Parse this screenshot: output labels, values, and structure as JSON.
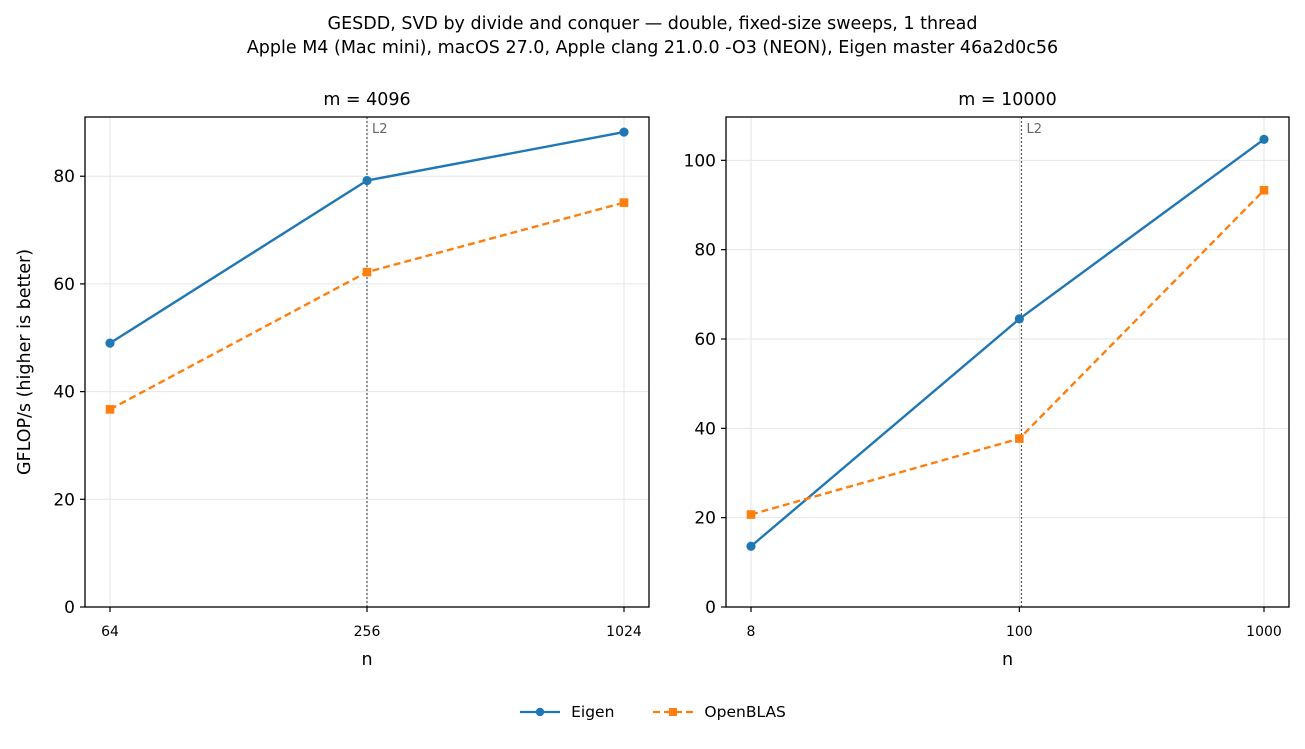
{
  "title_line1": "GESDD, SVD by divide and conquer — double, fixed-size sweeps, 1 thread",
  "title_line2": "Apple M4 (Mac mini), macOS 27.0, Apple clang 21.0.0 -O3 (NEON), Eigen master 46a2d0c56",
  "legend": [
    {
      "name": "Eigen",
      "color": "#1f77b4",
      "marker": "circle",
      "line": "solid"
    },
    {
      "name": "OpenBLAS",
      "color": "#ff7f0e",
      "marker": "square",
      "line": "dashed"
    }
  ],
  "chart_data": [
    {
      "type": "line",
      "title": "m = 4096",
      "xlabel": "n",
      "ylabel": "GFLOP/s (higher is better)",
      "x_scale": "log2",
      "x": [
        64,
        256,
        1024
      ],
      "x_tick_labels": [
        "64",
        "256",
        "1024"
      ],
      "ylim": [
        0,
        91
      ],
      "y_ticks": [
        0,
        20,
        40,
        60,
        80
      ],
      "grid": true,
      "vline": {
        "x": 256,
        "label": "L2"
      },
      "series": [
        {
          "name": "Eigen",
          "values": [
            49.0,
            79.2,
            88.2
          ]
        },
        {
          "name": "OpenBLAS",
          "values": [
            36.7,
            62.2,
            75.1
          ]
        }
      ]
    },
    {
      "type": "line",
      "title": "m = 10000",
      "xlabel": "n",
      "ylabel": "",
      "x_scale": "log10",
      "x": [
        8,
        100,
        1000
      ],
      "x_tick_labels": [
        "8",
        "100",
        "1000"
      ],
      "ylim": [
        0,
        109.7
      ],
      "y_ticks": [
        0,
        20,
        40,
        60,
        80,
        100
      ],
      "grid": true,
      "vline": {
        "x": 102,
        "label": "L2"
      },
      "series": [
        {
          "name": "Eigen",
          "values": [
            13.6,
            64.5,
            104.7
          ]
        },
        {
          "name": "OpenBLAS",
          "values": [
            20.7,
            37.7,
            93.3
          ]
        }
      ]
    }
  ]
}
